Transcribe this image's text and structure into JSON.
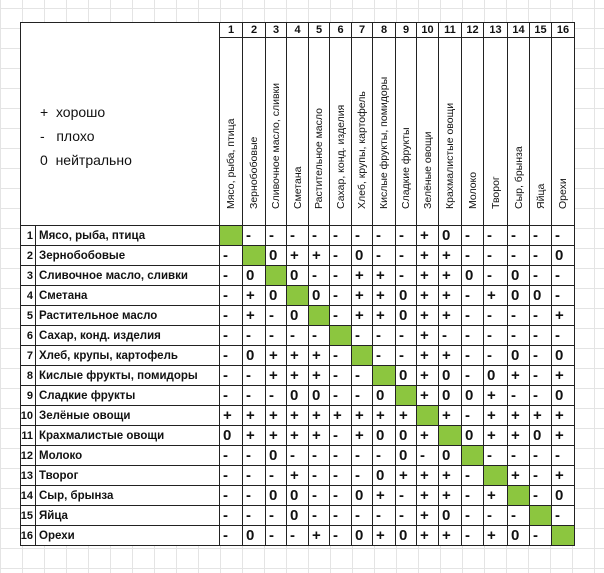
{
  "legend": [
    "+  хорошо",
    "-   плохо",
    "0  нейтрально"
  ],
  "colors": {
    "diagonal": "#8cc63f",
    "grid": "#222222"
  },
  "foods": [
    "Мясо, рыба, птица",
    "Зернобобовые",
    "Сливочное масло, сливки",
    "Сметана",
    "Растительное масло",
    "Сахар, конд. изделия",
    "Хлеб, крупы, картофель",
    "Кислые фрукты, помидоры",
    "Сладкие фрукты",
    "Зелёные овощи",
    "Крахмалистые овощи",
    "Молоко",
    "Творог",
    "Сыр, брынза",
    "Яйца",
    "Орехи"
  ],
  "matrix": [
    [
      "G",
      "-",
      "-",
      "-",
      "-",
      "-",
      "-",
      "-",
      "-",
      "+",
      "0",
      "-",
      "-",
      "-",
      "-",
      "-"
    ],
    [
      "-",
      "G",
      "0",
      "+",
      "+",
      "-",
      "0",
      "-",
      "-",
      "+",
      "+",
      "-",
      "-",
      "-",
      "-",
      "0"
    ],
    [
      "-",
      "0",
      "G",
      "0",
      "-",
      "-",
      "+",
      "+",
      "-",
      "+",
      "+",
      "0",
      "-",
      "0",
      "-",
      "-"
    ],
    [
      "-",
      "+",
      "0",
      "G",
      "0",
      "-",
      "+",
      "+",
      "0",
      "+",
      "+",
      "-",
      "+",
      "0",
      "0",
      "-"
    ],
    [
      "-",
      "+",
      "-",
      "0",
      "G",
      "-",
      "+",
      "+",
      "0",
      "+",
      "+",
      "-",
      "-",
      "-",
      "-",
      "+"
    ],
    [
      "-",
      "-",
      "-",
      "-",
      "-",
      "G",
      "-",
      "-",
      "-",
      "+",
      "-",
      "-",
      "-",
      "-",
      "-",
      "-"
    ],
    [
      "-",
      "0",
      "+",
      "+",
      "+",
      "-",
      "G",
      "-",
      "-",
      "+",
      "+",
      "-",
      "-",
      "0",
      "-",
      "0"
    ],
    [
      "-",
      "-",
      "+",
      "+",
      "+",
      "-",
      "-",
      "G",
      "0",
      "+",
      "0",
      "-",
      "0",
      "+",
      "-",
      "+"
    ],
    [
      "-",
      "-",
      "-",
      "0",
      "0",
      "-",
      "-",
      "0",
      "G",
      "+",
      "0",
      "0",
      "+",
      "-",
      "-",
      "0"
    ],
    [
      "+",
      "+",
      "+",
      "+",
      "+",
      "+",
      "+",
      "+",
      "+",
      "G",
      "+",
      "-",
      "+",
      "+",
      "+",
      "+"
    ],
    [
      "0",
      "+",
      "+",
      "+",
      "+",
      "-",
      "+",
      "0",
      "0",
      "+",
      "G",
      "0",
      "+",
      "+",
      "0",
      "+"
    ],
    [
      "-",
      "-",
      "0",
      "-",
      "-",
      "-",
      "-",
      "-",
      "0",
      "-",
      "0",
      "G",
      "-",
      "-",
      "-",
      "-"
    ],
    [
      "-",
      "-",
      "-",
      "+",
      "-",
      "-",
      "-",
      "0",
      "+",
      "+",
      "+",
      "-",
      "G",
      "+",
      "-",
      "+"
    ],
    [
      "-",
      "-",
      "0",
      "0",
      "-",
      "-",
      "0",
      "+",
      "-",
      "+",
      "+",
      "-",
      "+",
      "G",
      "-",
      "0"
    ],
    [
      "-",
      "-",
      "-",
      "0",
      "-",
      "-",
      "-",
      "-",
      "-",
      "+",
      "0",
      "-",
      "-",
      "-",
      "G",
      "-"
    ],
    [
      "-",
      "0",
      "-",
      "-",
      "+",
      "-",
      "0",
      "+",
      "0",
      "+",
      "+",
      "-",
      "+",
      "0",
      "-",
      "G"
    ]
  ]
}
